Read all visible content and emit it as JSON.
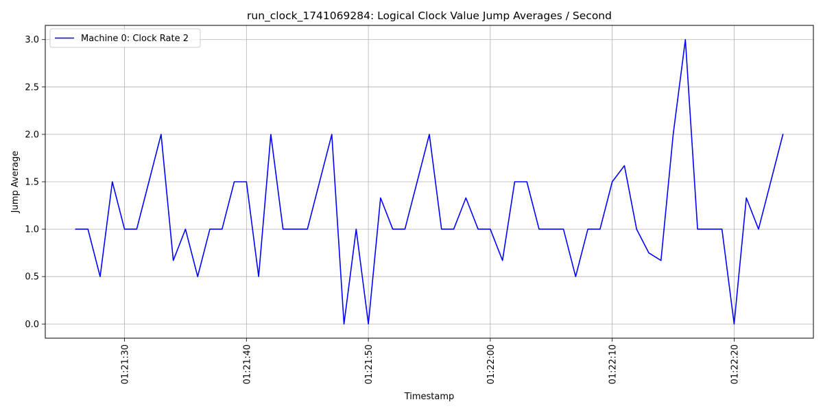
{
  "chart_data": {
    "type": "line",
    "title": "run_clock_1741069284: Logical Clock Value Jump Averages / Second",
    "xlabel": "Timestamp",
    "ylabel": "Jump Average",
    "x_axis_kind": "time",
    "xlim": [
      "01:21:23.5",
      "01:22:26.5"
    ],
    "ylim": [
      -0.15,
      3.15
    ],
    "grid": true,
    "legend_position": "top-left",
    "x_tick_labels": [
      "01:21:30",
      "01:21:40",
      "01:21:50",
      "01:22:00",
      "01:22:10",
      "01:22:20"
    ],
    "y_tick_values": [
      0.0,
      0.5,
      1.0,
      1.5,
      2.0,
      2.5,
      3.0
    ],
    "y_tick_labels": [
      "0.0",
      "0.5",
      "1.0",
      "1.5",
      "2.0",
      "2.5",
      "3.0"
    ],
    "series": [
      {
        "name": "Machine 0: Clock Rate 2",
        "color": "#0000ff",
        "x": [
          "01:21:26",
          "01:21:27",
          "01:21:28",
          "01:21:29",
          "01:21:30",
          "01:21:31",
          "01:21:32",
          "01:21:33",
          "01:21:34",
          "01:21:35",
          "01:21:36",
          "01:21:37",
          "01:21:38",
          "01:21:39",
          "01:21:40",
          "01:21:41",
          "01:21:42",
          "01:21:43",
          "01:21:44",
          "01:21:45",
          "01:21:46",
          "01:21:47",
          "01:21:48",
          "01:21:49",
          "01:21:50",
          "01:21:51",
          "01:21:52",
          "01:21:53",
          "01:21:54",
          "01:21:55",
          "01:21:56",
          "01:21:57",
          "01:21:58",
          "01:21:59",
          "01:22:00",
          "01:22:01",
          "01:22:02",
          "01:22:03",
          "01:22:04",
          "01:22:05",
          "01:22:06",
          "01:22:07",
          "01:22:08",
          "01:22:09",
          "01:22:10",
          "01:22:11",
          "01:22:12",
          "01:22:13",
          "01:22:14",
          "01:22:15",
          "01:22:16",
          "01:22:17",
          "01:22:18",
          "01:22:19",
          "01:22:20",
          "01:22:21",
          "01:22:22",
          "01:22:24"
        ],
        "values": [
          1.0,
          1.0,
          0.5,
          1.5,
          1.0,
          1.0,
          1.5,
          2.0,
          0.67,
          1.0,
          0.5,
          1.0,
          1.0,
          1.5,
          1.5,
          0.5,
          2.0,
          1.0,
          1.0,
          1.0,
          1.5,
          2.0,
          0.0,
          1.0,
          0.0,
          1.33,
          1.0,
          1.0,
          1.5,
          2.0,
          1.0,
          1.0,
          1.33,
          1.0,
          1.0,
          0.67,
          1.5,
          1.5,
          1.0,
          1.0,
          1.0,
          0.5,
          1.0,
          1.0,
          1.5,
          1.67,
          1.0,
          0.75,
          0.67,
          2.0,
          3.0,
          1.0,
          1.0,
          1.0,
          0.0,
          1.33,
          1.0,
          2.0
        ]
      }
    ]
  }
}
